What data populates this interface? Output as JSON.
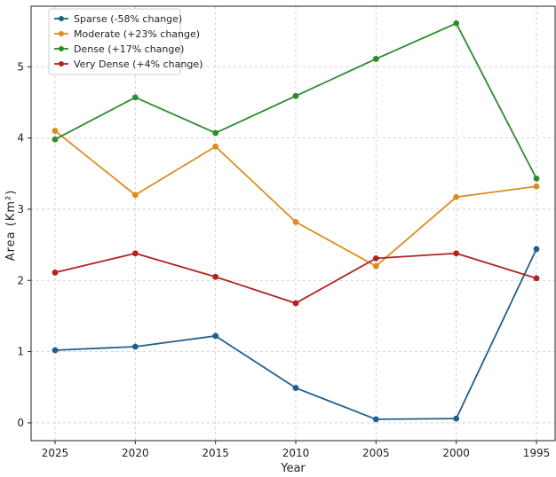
{
  "chart_data": {
    "type": "line",
    "title": "",
    "xlabel": "Year",
    "ylabel": "Area (Km²)",
    "categories": [
      "2025",
      "2020",
      "2015",
      "2010",
      "2005",
      "2000",
      "1995"
    ],
    "ylim": [
      -0.25,
      5.85
    ],
    "yticks": [
      "0",
      "1",
      "2",
      "3",
      "4",
      "5"
    ],
    "grid": true,
    "legend_position": "top-left",
    "series": [
      {
        "name": "Sparse (-58% change)",
        "color": "#1f5f8f",
        "values": [
          1.02,
          1.07,
          1.22,
          0.49,
          0.05,
          0.06,
          2.44
        ]
      },
      {
        "name": "Moderate (+23% change)",
        "color": "#e08a1e",
        "values": [
          4.1,
          3.2,
          3.88,
          2.82,
          2.2,
          3.17,
          3.32
        ]
      },
      {
        "name": "Dense (+17% change)",
        "color": "#2e8b2e",
        "values": [
          3.98,
          4.57,
          4.07,
          4.59,
          5.11,
          5.61,
          3.43
        ]
      },
      {
        "name": "Very Dense (+4% change)",
        "color": "#b22222",
        "values": [
          2.11,
          2.38,
          2.05,
          1.68,
          2.31,
          2.38,
          2.03
        ]
      }
    ]
  }
}
